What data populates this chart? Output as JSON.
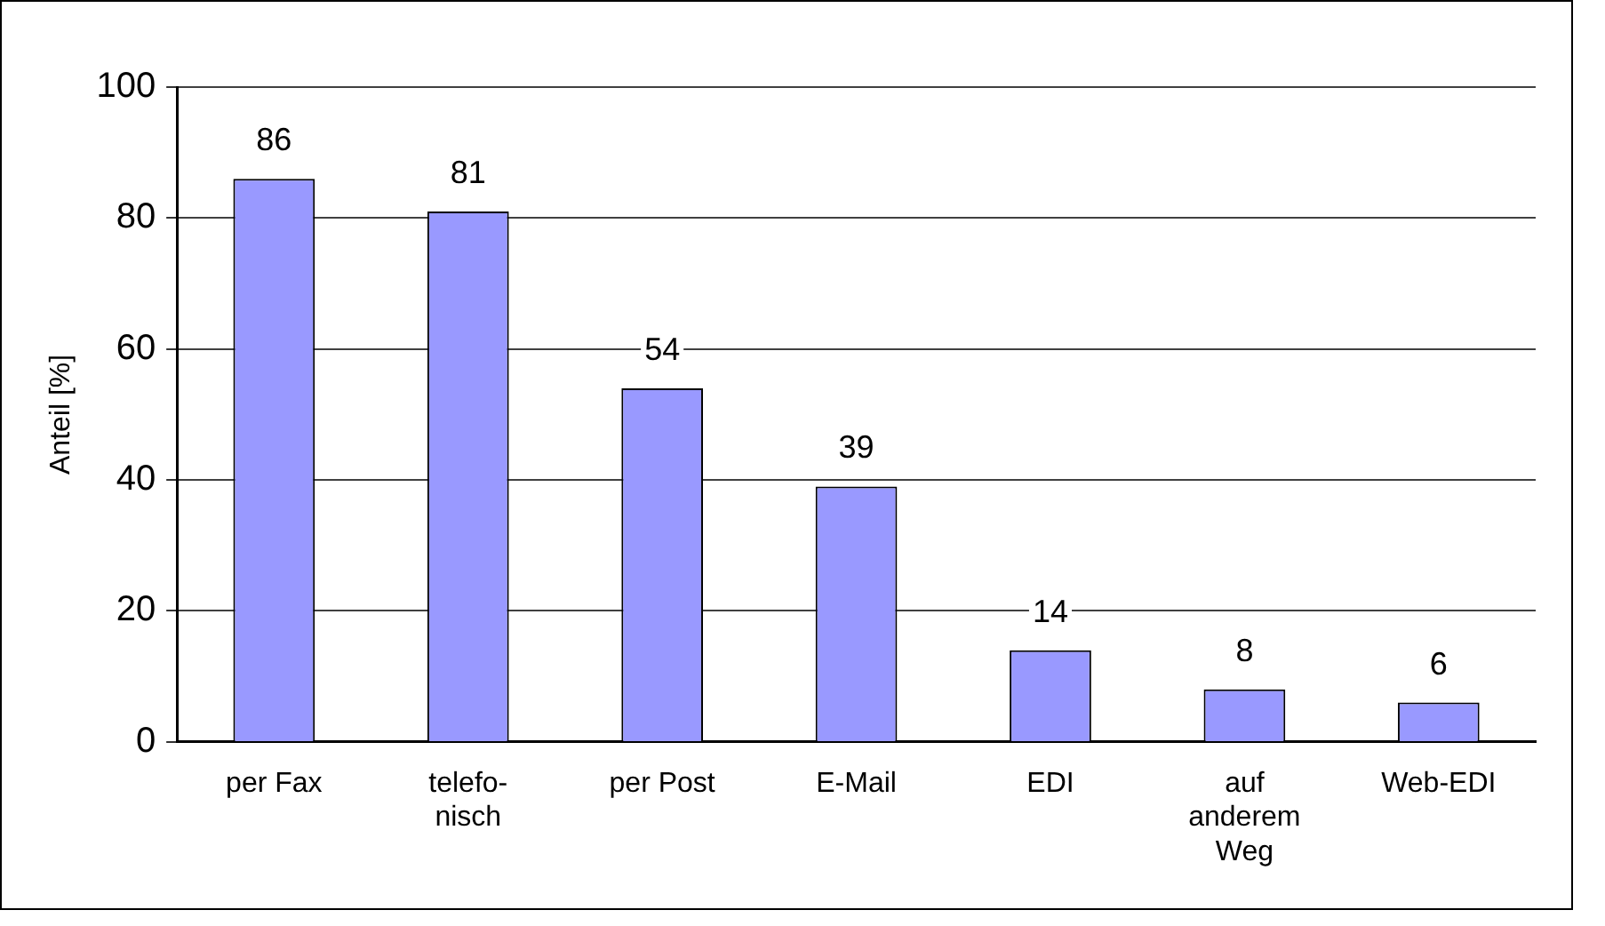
{
  "chart_data": {
    "type": "bar",
    "ylabel": "Anteil [%]",
    "categories": [
      "per Fax",
      "telefo-\nnisch",
      "per Post",
      "E-Mail",
      "EDI",
      "auf\nanderem\nWeg",
      "Web-EDI"
    ],
    "values": [
      86,
      81,
      54,
      39,
      14,
      8,
      6
    ],
    "color": "#9999ff",
    "ylim": [
      0,
      100
    ],
    "yticks": [
      0,
      20,
      40,
      60,
      80,
      100
    ],
    "grid": "y",
    "legend": false,
    "data_labels": true
  }
}
